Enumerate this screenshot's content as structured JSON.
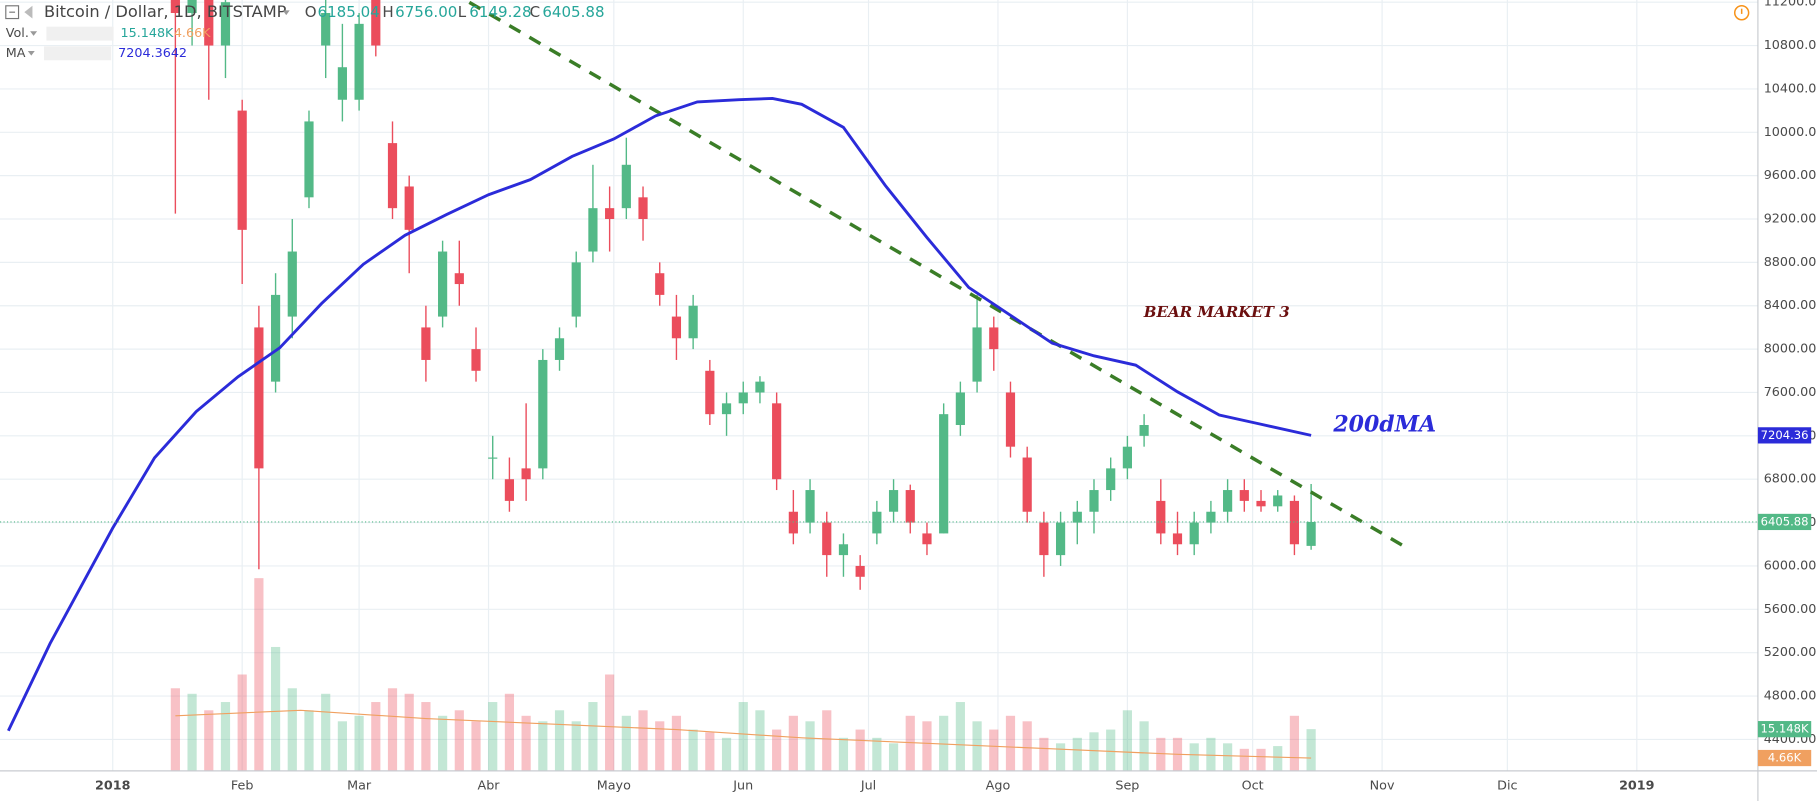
{
  "header": {
    "title": "Bitcoin / Dollar, 1D, BITSTAMP",
    "ohlc": [
      {
        "key": "O",
        "value": "6185.04"
      },
      {
        "key": "H",
        "value": "6756.00"
      },
      {
        "key": "L",
        "value": "6149.28"
      },
      {
        "key": "C",
        "value": "6405.88"
      }
    ],
    "vol_label": "Vol.",
    "vol_value": "15.148K",
    "vol_ma_value": "4.66K",
    "ma_label": "MA",
    "ma_value": "7204.3642",
    "price_axis_ma": "7204.36"
  },
  "chart_data": {
    "type": "candlestick",
    "annotations": [
      "BEAR MARKET 3",
      "200dMA"
    ],
    "x": [
      15,
      19,
      23,
      27,
      31,
      35,
      39,
      43,
      47,
      51,
      55,
      59,
      63,
      67,
      71,
      75,
      79,
      83,
      87,
      91,
      95,
      99,
      103,
      107,
      111,
      115,
      119,
      123,
      127,
      131,
      135,
      139,
      143,
      147,
      151,
      155,
      159,
      163,
      167,
      171,
      175,
      179,
      183,
      187,
      191,
      195,
      199,
      203,
      207,
      211,
      215,
      219,
      223,
      227,
      231,
      235,
      239,
      243,
      247,
      251,
      255,
      259,
      263,
      267,
      271,
      275,
      279,
      283,
      287
    ],
    "open": [
      11600,
      11100,
      11500,
      10800,
      10200,
      8200,
      7700,
      8300,
      9400,
      10800,
      10300,
      10300,
      11400,
      9900,
      9500,
      8200,
      8300,
      8700,
      8000,
      7000,
      6800,
      6900,
      6900,
      7900,
      8300,
      8900,
      9300,
      9300,
      9400,
      8700,
      8300,
      8100,
      7800,
      7400,
      7500,
      7600,
      7500,
      6500,
      6400,
      6400,
      6100,
      6000,
      6300,
      6500,
      6700,
      6300,
      6300,
      7300,
      7700,
      8200,
      7600,
      7000,
      6400,
      6100,
      6400,
      6500,
      6700,
      6900,
      7200,
      6600,
      6300,
      6200,
      6400,
      6500,
      6700,
      6600,
      6550,
      6600,
      6185.04
    ],
    "high": [
      11900,
      11900,
      11800,
      11600,
      10300,
      8400,
      8700,
      9200,
      10200,
      11300,
      11000,
      11100,
      11600,
      10100,
      9600,
      8400,
      9000,
      9000,
      8200,
      7200,
      7000,
      7500,
      8000,
      8200,
      8900,
      9700,
      9500,
      9950,
      9500,
      8800,
      8500,
      8500,
      7900,
      7600,
      7700,
      7750,
      7600,
      6700,
      6800,
      6500,
      6300,
      6100,
      6600,
      6800,
      6750,
      6400,
      7500,
      7700,
      8500,
      8300,
      7700,
      7100,
      6500,
      6500,
      6600,
      6800,
      7000,
      7200,
      7400,
      6800,
      6500,
      6500,
      6600,
      6800,
      6800,
      6700,
      6700,
      6650,
      6756
    ],
    "low": [
      9250,
      10800,
      10300,
      10500,
      8600,
      5970,
      7600,
      8100,
      9300,
      10500,
      10100,
      10200,
      10700,
      9200,
      8700,
      7700,
      8200,
      8400,
      7700,
      6800,
      6500,
      6600,
      6800,
      7800,
      8200,
      8800,
      8900,
      9200,
      9000,
      8400,
      7900,
      8000,
      7300,
      7200,
      7400,
      7500,
      6700,
      6200,
      6300,
      5900,
      5900,
      5780,
      6200,
      6400,
      6300,
      6100,
      6300,
      7200,
      7600,
      7800,
      7000,
      6400,
      5900,
      6000,
      6200,
      6300,
      6600,
      6800,
      7100,
      6200,
      6100,
      6100,
      6300,
      6400,
      6500,
      6500,
      6500,
      6100,
      6149.28
    ],
    "close": [
      11100,
      11500,
      10800,
      11200,
      9100,
      6900,
      8500,
      8900,
      10100,
      11100,
      10600,
      11000,
      10800,
      9300,
      9100,
      7900,
      8900,
      8600,
      7800,
      7000,
      6600,
      6800,
      7900,
      8100,
      8800,
      9300,
      9200,
      9700,
      9200,
      8500,
      8100,
      8400,
      7400,
      7500,
      7600,
      7700,
      6800,
      6300,
      6700,
      6100,
      6200,
      5900,
      6500,
      6700,
      6400,
      6200,
      7400,
      7600,
      8200,
      8000,
      7100,
      6500,
      6100,
      6400,
      6500,
      6700,
      6900,
      7100,
      7300,
      6300,
      6200,
      6400,
      6500,
      6700,
      6600,
      6550,
      6650,
      6200,
      6405.88
    ],
    "up_color": "#53b987",
    "down_color": "#eb4d5c",
    "xlim": [
      -27,
      394
    ],
    "xticks": [
      {
        "value": 0,
        "label": "2018"
      },
      {
        "value": 31,
        "label": "Feb"
      },
      {
        "value": 59,
        "label": "Mar"
      },
      {
        "value": 90,
        "label": "Abr"
      },
      {
        "value": 120,
        "label": "Mayo"
      },
      {
        "value": 151,
        "label": "Jun"
      },
      {
        "value": 181,
        "label": "Jul"
      },
      {
        "value": 212,
        "label": "Ago"
      },
      {
        "value": 243,
        "label": "Sep"
      },
      {
        "value": 273,
        "label": "Oct"
      },
      {
        "value": 304,
        "label": "Nov"
      },
      {
        "value": 334,
        "label": "Dic"
      },
      {
        "value": 365,
        "label": "2019"
      }
    ],
    "ylim": [
      4110,
      11220
    ],
    "yticks": [
      {
        "value": 4400,
        "label": "4400.00"
      },
      {
        "value": 4800,
        "label": "4800.00"
      },
      {
        "value": 5200,
        "label": "5200.00"
      },
      {
        "value": 5600,
        "label": "5600.00"
      },
      {
        "value": 6000,
        "label": "6000.00"
      },
      {
        "value": 6400,
        "label": "6400.00"
      },
      {
        "value": 6800,
        "label": "6800.00"
      },
      {
        "value": 7200,
        "label": "7200.00"
      },
      {
        "value": 7600,
        "label": "7600.00"
      },
      {
        "value": 8000,
        "label": "8000.00"
      },
      {
        "value": 8400,
        "label": "8400.00"
      },
      {
        "value": 8800,
        "label": "8800.00"
      },
      {
        "value": 9200,
        "label": "9200.00"
      },
      {
        "value": 9600,
        "label": "9600.00"
      },
      {
        "value": 10000,
        "label": "10000.00"
      },
      {
        "value": 10400,
        "label": "10400.00"
      },
      {
        "value": 10800,
        "label": "10800.00"
      },
      {
        "value": 11200,
        "label": "11200.00"
      }
    ],
    "grid": true,
    "ma": {
      "color": "#2b2bd9",
      "x": [
        -25,
        -15,
        0,
        10,
        20,
        30,
        40,
        50,
        60,
        70,
        80,
        90,
        100,
        110,
        120,
        130,
        140,
        150,
        158,
        165,
        175,
        185,
        195,
        205,
        215,
        225,
        235,
        245,
        255,
        265,
        275,
        287
      ],
      "values": [
        4480,
        5285,
        6350,
        6997,
        7424,
        7745,
        8012,
        8420,
        8782,
        9050,
        9242,
        9424,
        9563,
        9777,
        9938,
        10151,
        10280,
        10301,
        10312,
        10258,
        10045,
        9510,
        9029,
        8569,
        8312,
        8055,
        7938,
        7852,
        7606,
        7392,
        7307,
        7204.36
      ]
    },
    "volume": {
      "ylim": [
        0,
        280
      ],
      "values": [
        30,
        28,
        22,
        25,
        35,
        70,
        45,
        30,
        22,
        28,
        18,
        20,
        25,
        30,
        28,
        25,
        20,
        22,
        18,
        25,
        28,
        20,
        18,
        22,
        18,
        25,
        35,
        20,
        22,
        18,
        20,
        15,
        14,
        12,
        25,
        22,
        15,
        20,
        18,
        22,
        12,
        15,
        12,
        10,
        20,
        18,
        20,
        25,
        18,
        15,
        20,
        18,
        12,
        10,
        12,
        14,
        15,
        22,
        18,
        12,
        12,
        10,
        12,
        10,
        8,
        8,
        9,
        20,
        15.148
      ],
      "ma": {
        "color": "#f0a060",
        "x": [
          15,
          45,
          75,
          105,
          135,
          165,
          195,
          225,
          255,
          287
        ],
        "values": [
          20,
          22,
          19,
          17,
          15,
          12,
          10,
          8,
          6,
          4.66
        ]
      }
    }
  }
}
